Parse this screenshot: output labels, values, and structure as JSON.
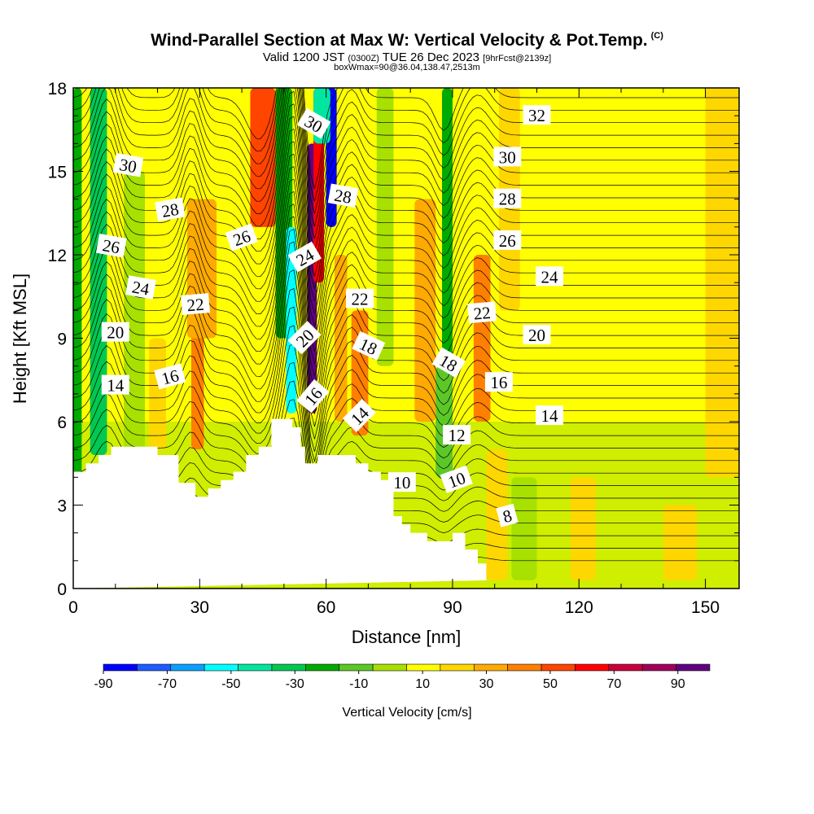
{
  "title": {
    "main": "Wind-Parallel Section at Max W: Vertical Velocity & Pot.Temp.",
    "copyright": "(C)",
    "valid_prefix": "Valid 1200 JST",
    "valid_zulu": "(0300Z)",
    "valid_date": "TUE 26 Dec 2023",
    "forecast": "[9hrFcst@2139z]",
    "box": "boxWmax=90@36.04,138.47,2513m"
  },
  "colors": {
    "scale": [
      "#0000ff",
      "#1d5cff",
      "#0aa0ff",
      "#00ffff",
      "#00e6a0",
      "#00c850",
      "#00aa00",
      "#5cc828",
      "#a8e000",
      "#ffff00",
      "#ffd700",
      "#ffaa00",
      "#ff7f00",
      "#ff4500",
      "#ff0000",
      "#c8003c",
      "#a0005a",
      "#600080"
    ],
    "terrain": "#ffffff",
    "contour": "#000000"
  },
  "chart_data": {
    "type": "heatmap",
    "xlabel": "Distance [nm]",
    "ylabel": "Height [Kft MSL]",
    "xlim": [
      0,
      158
    ],
    "ylim": [
      0,
      18
    ],
    "x_ticks": [
      0,
      30,
      60,
      90,
      120,
      150
    ],
    "y_ticks": [
      0,
      3,
      6,
      9,
      12,
      15,
      18
    ],
    "colorbar": {
      "label": "Vertical Velocity [cm/s]",
      "range": [
        -90,
        100
      ],
      "step": 10,
      "tick_labels": [
        -90,
        -70,
        -50,
        -30,
        -10,
        10,
        30,
        50,
        70,
        90
      ]
    },
    "terrain_profile": {
      "x": [
        0,
        3,
        3,
        6,
        6,
        9,
        9,
        20,
        20,
        25,
        25,
        29,
        29,
        32,
        32,
        35,
        35,
        38,
        38,
        41,
        41,
        44,
        44,
        47,
        47,
        52,
        52,
        54,
        54,
        55,
        55,
        58,
        58,
        67,
        67,
        70,
        70,
        73,
        73,
        76,
        76,
        78,
        78,
        80,
        80,
        84,
        84,
        90,
        90,
        93,
        93,
        96,
        96,
        98,
        98,
        100,
        100,
        158
      ],
      "y": [
        4.2,
        4.2,
        4.5,
        4.5,
        4.8,
        4.8,
        5.1,
        5.1,
        4.8,
        4.8,
        3.8,
        3.8,
        3.3,
        3.3,
        3.6,
        3.6,
        3.9,
        3.9,
        4.2,
        4.2,
        4.8,
        4.8,
        5.1,
        5.1,
        6.1,
        6.1,
        5.8,
        5.8,
        5.1,
        5.1,
        4.5,
        4.5,
        4.8,
        4.8,
        4.5,
        4.5,
        4.2,
        4.2,
        3.9,
        3.9,
        2.6,
        2.6,
        2.3,
        2.3,
        2.0,
        2.0,
        1.7,
        1.7,
        2.0,
        2.0,
        1.4,
        1.4,
        0.9,
        0.9,
        0.3,
        0.3,
        0.3
      ]
    },
    "updraft_cores": [
      {
        "x": 0,
        "w": 2,
        "z0": 4,
        "z1": 18,
        "value": -25
      },
      {
        "x": 4,
        "w": 4,
        "z0": 4.8,
        "z1": 18,
        "value": -35
      },
      {
        "x": 12,
        "w": 5,
        "z0": 5,
        "z1": 15,
        "value": -10
      },
      {
        "x": 18,
        "w": 4,
        "z0": 5,
        "z1": 9,
        "value": 15
      },
      {
        "x": 28,
        "w": 3,
        "z0": 5,
        "z1": 9.5,
        "value": 35
      },
      {
        "x": 27,
        "w": 7,
        "z0": 9,
        "z1": 14,
        "value": 20
      },
      {
        "x": 42,
        "w": 6,
        "z0": 13,
        "z1": 18,
        "value": 45
      },
      {
        "x": 48,
        "w": 4,
        "z0": 9,
        "z1": 18,
        "value": -25
      },
      {
        "x": 50.5,
        "w": 2.5,
        "z0": 6.3,
        "z1": 13,
        "value": -55
      },
      {
        "x": 55.5,
        "w": 2.3,
        "z0": 6.3,
        "z1": 16,
        "value": 80
      },
      {
        "x": 57,
        "w": 2.5,
        "z0": 11,
        "z1": 18,
        "value": 50
      },
      {
        "x": 60,
        "w": 2.5,
        "z0": 13,
        "z1": 18,
        "value": -85
      },
      {
        "x": 57,
        "w": 4,
        "z0": 16,
        "z1": 18,
        "value": -50
      },
      {
        "x": 62,
        "w": 3,
        "z0": 6,
        "z1": 12,
        "value": 20
      },
      {
        "x": 66,
        "w": 4,
        "z0": 5.5,
        "z1": 10,
        "value": 35
      },
      {
        "x": 72,
        "w": 4,
        "z0": 8,
        "z1": 18,
        "value": -10
      },
      {
        "x": 81,
        "w": 5,
        "z0": 6,
        "z1": 14,
        "value": 25
      },
      {
        "x": 87.5,
        "w": 2.5,
        "z0": 8,
        "z1": 18,
        "value": -30
      },
      {
        "x": 86,
        "w": 4,
        "z0": 4,
        "z1": 8,
        "value": -20
      },
      {
        "x": 95,
        "w": 4,
        "z0": 6,
        "z1": 12,
        "value": 35
      },
      {
        "x": 101,
        "w": 5,
        "z0": 10,
        "z1": 18,
        "value": 15
      },
      {
        "x": 98,
        "w": 5,
        "z0": 0.3,
        "z1": 5,
        "value": 15
      },
      {
        "x": 104,
        "w": 6,
        "z0": 0.3,
        "z1": 4,
        "value": -10
      },
      {
        "x": 118,
        "w": 6,
        "z0": 0.3,
        "z1": 4,
        "value": 15
      },
      {
        "x": 140,
        "w": 8,
        "z0": 0.3,
        "z1": 3,
        "value": 15
      },
      {
        "x": 150,
        "w": 8,
        "z0": 4,
        "z1": 18,
        "value": 10
      }
    ],
    "potential_temperature_labels": [
      {
        "text": "32",
        "x": 110,
        "y": 17.0,
        "angle": 0
      },
      {
        "text": "30",
        "x": 13,
        "y": 15.2,
        "angle": 10
      },
      {
        "text": "30",
        "x": 57,
        "y": 16.7,
        "angle": 30
      },
      {
        "text": "30",
        "x": 103,
        "y": 15.5,
        "angle": 0
      },
      {
        "text": "28",
        "x": 23,
        "y": 13.6,
        "angle": -10
      },
      {
        "text": "28",
        "x": 64,
        "y": 14.1,
        "angle": 10
      },
      {
        "text": "28",
        "x": 103,
        "y": 14.0,
        "angle": 0
      },
      {
        "text": "26",
        "x": 9,
        "y": 12.3,
        "angle": 10
      },
      {
        "text": "26",
        "x": 40,
        "y": 12.6,
        "angle": -20
      },
      {
        "text": "26",
        "x": 103,
        "y": 12.5,
        "angle": 0
      },
      {
        "text": "24",
        "x": 16,
        "y": 10.8,
        "angle": 10
      },
      {
        "text": "24",
        "x": 55,
        "y": 11.9,
        "angle": -30
      },
      {
        "text": "24",
        "x": 113,
        "y": 11.2,
        "angle": 0
      },
      {
        "text": "22",
        "x": 29,
        "y": 10.2,
        "angle": -5
      },
      {
        "text": "22",
        "x": 68,
        "y": 10.4,
        "angle": 0
      },
      {
        "text": "22",
        "x": 97,
        "y": 9.9,
        "angle": -5
      },
      {
        "text": "20",
        "x": 10,
        "y": 9.2,
        "angle": 0
      },
      {
        "text": "20",
        "x": 55,
        "y": 9.0,
        "angle": -45
      },
      {
        "text": "20",
        "x": 110,
        "y": 9.1,
        "angle": 0
      },
      {
        "text": "18",
        "x": 70,
        "y": 8.7,
        "angle": 25
      },
      {
        "text": "18",
        "x": 89,
        "y": 8.1,
        "angle": 30
      },
      {
        "text": "16",
        "x": 23,
        "y": 7.6,
        "angle": -15
      },
      {
        "text": "16",
        "x": 57,
        "y": 6.9,
        "angle": -50
      },
      {
        "text": "16",
        "x": 101,
        "y": 7.4,
        "angle": 0
      },
      {
        "text": "14",
        "x": 10,
        "y": 7.3,
        "angle": 0
      },
      {
        "text": "14",
        "x": 68,
        "y": 6.2,
        "angle": -45
      },
      {
        "text": "14",
        "x": 113,
        "y": 6.2,
        "angle": 0
      },
      {
        "text": "12",
        "x": 91,
        "y": 5.5,
        "angle": 0
      },
      {
        "text": "10",
        "x": 78,
        "y": 3.8,
        "angle": 0
      },
      {
        "text": "10",
        "x": 91,
        "y": 3.9,
        "angle": -20
      },
      {
        "text": "8",
        "x": 103,
        "y": 2.6,
        "angle": -15
      }
    ]
  }
}
